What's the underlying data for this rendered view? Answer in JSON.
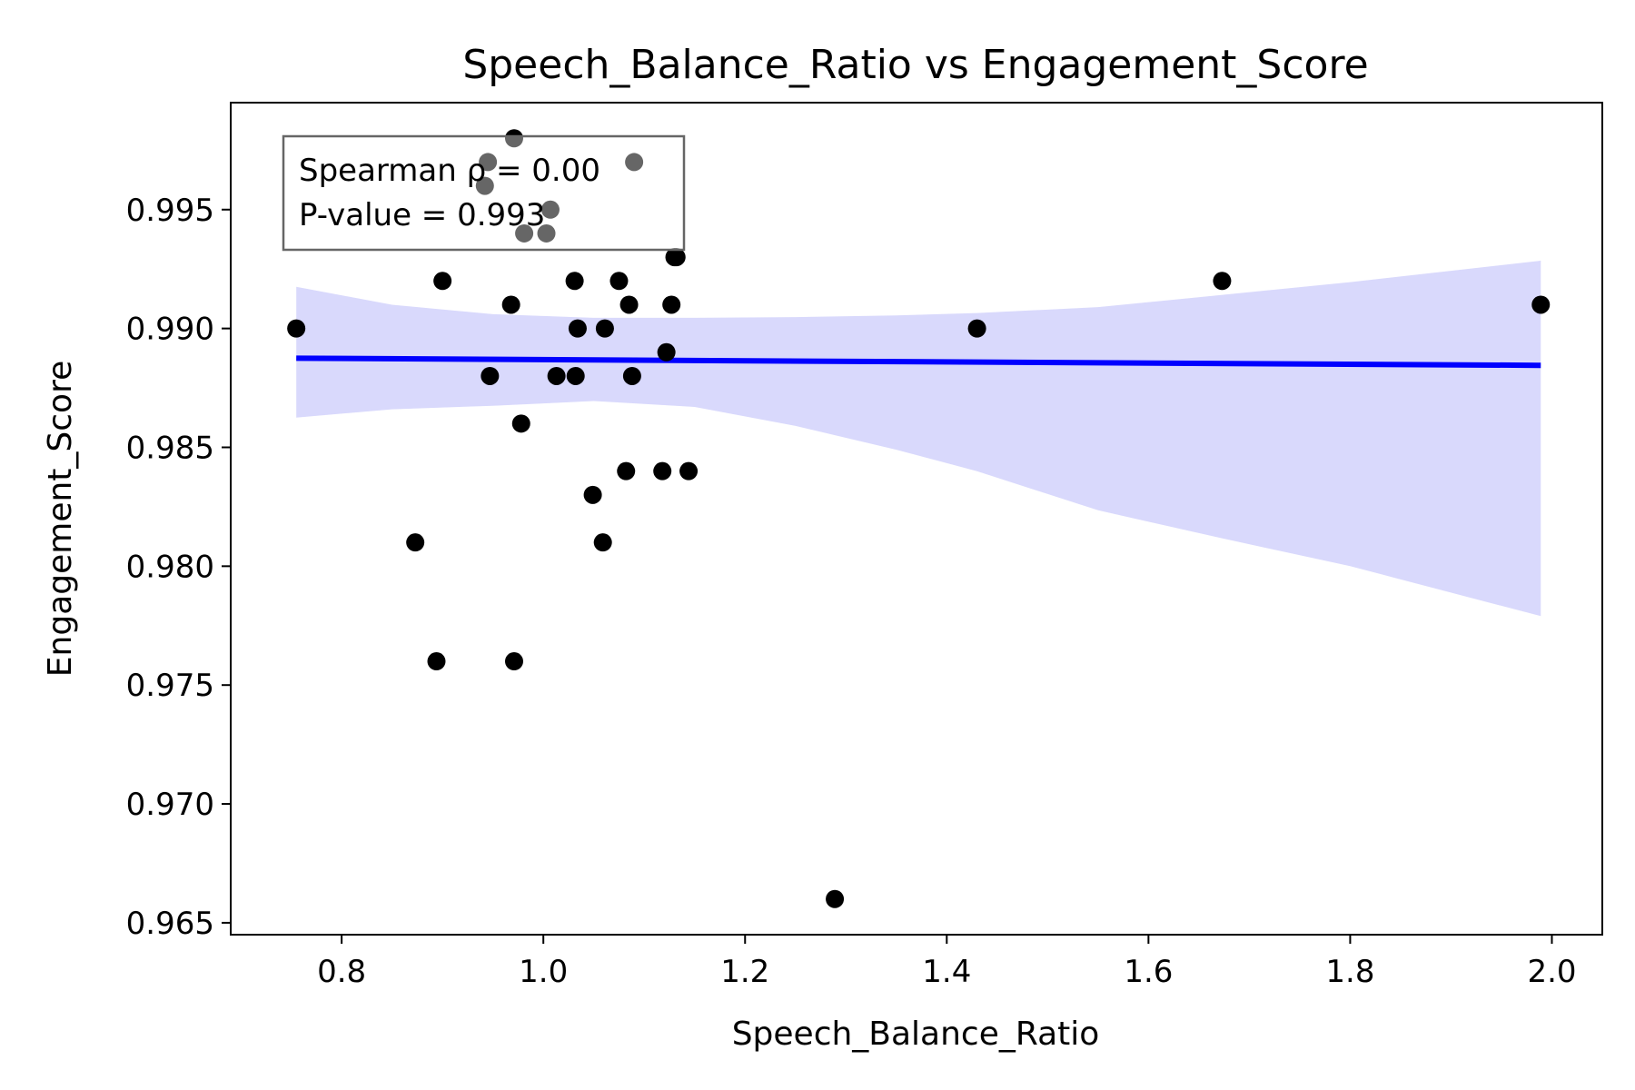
{
  "chart_data": {
    "type": "scatter",
    "title": "Speech_Balance_Ratio vs Engagement_Score",
    "xlabel": "Speech_Balance_Ratio",
    "ylabel": "Engagement_Score",
    "xlim": [
      0.69,
      2.05
    ],
    "ylim": [
      0.9645,
      0.9995
    ],
    "xticks": [
      0.8,
      1.0,
      1.2,
      1.4,
      1.6,
      1.8,
      2.0
    ],
    "xtick_labels": [
      "0.8",
      "1.0",
      "1.2",
      "1.4",
      "1.6",
      "1.8",
      "2.0"
    ],
    "yticks": [
      0.965,
      0.97,
      0.975,
      0.98,
      0.985,
      0.99,
      0.995
    ],
    "ytick_labels": [
      "0.965",
      "0.970",
      "0.975",
      "0.980",
      "0.985",
      "0.990",
      "0.995"
    ],
    "grid": false,
    "points": [
      {
        "x": 0.755,
        "y": 0.99
      },
      {
        "x": 0.873,
        "y": 0.981
      },
      {
        "x": 0.894,
        "y": 0.976
      },
      {
        "x": 0.9,
        "y": 0.992
      },
      {
        "x": 0.942,
        "y": 0.996
      },
      {
        "x": 0.945,
        "y": 0.997
      },
      {
        "x": 0.947,
        "y": 0.988
      },
      {
        "x": 0.968,
        "y": 0.991
      },
      {
        "x": 0.971,
        "y": 0.998
      },
      {
        "x": 0.971,
        "y": 0.976
      },
      {
        "x": 0.978,
        "y": 0.986
      },
      {
        "x": 0.981,
        "y": 0.994
      },
      {
        "x": 1.003,
        "y": 0.994
      },
      {
        "x": 1.007,
        "y": 0.995
      },
      {
        "x": 1.013,
        "y": 0.988
      },
      {
        "x": 1.031,
        "y": 0.992
      },
      {
        "x": 1.032,
        "y": 0.988
      },
      {
        "x": 1.034,
        "y": 0.99
      },
      {
        "x": 1.049,
        "y": 0.983
      },
      {
        "x": 1.059,
        "y": 0.981
      },
      {
        "x": 1.061,
        "y": 0.99
      },
      {
        "x": 1.075,
        "y": 0.992
      },
      {
        "x": 1.082,
        "y": 0.984
      },
      {
        "x": 1.085,
        "y": 0.991
      },
      {
        "x": 1.088,
        "y": 0.988
      },
      {
        "x": 1.09,
        "y": 0.997
      },
      {
        "x": 1.118,
        "y": 0.984
      },
      {
        "x": 1.122,
        "y": 0.989
      },
      {
        "x": 1.127,
        "y": 0.991
      },
      {
        "x": 1.13,
        "y": 0.993
      },
      {
        "x": 1.132,
        "y": 0.993
      },
      {
        "x": 1.144,
        "y": 0.984
      },
      {
        "x": 1.289,
        "y": 0.966
      },
      {
        "x": 1.43,
        "y": 0.99
      },
      {
        "x": 1.673,
        "y": 0.992
      },
      {
        "x": 1.989,
        "y": 0.991
      }
    ],
    "regression_line": {
      "x": [
        0.755,
        1.989
      ],
      "y": [
        0.98875,
        0.98845
      ]
    },
    "confidence_band": {
      "x": [
        0.755,
        0.85,
        0.95,
        1.05,
        1.15,
        1.25,
        1.35,
        1.43,
        1.55,
        1.67,
        1.8,
        1.989
      ],
      "upper": [
        0.99175,
        0.991,
        0.9906,
        0.99045,
        0.99045,
        0.99048,
        0.99055,
        0.99065,
        0.9909,
        0.9914,
        0.99195,
        0.99285
      ],
      "lower": [
        0.98625,
        0.9866,
        0.98675,
        0.98695,
        0.9867,
        0.9859,
        0.9849,
        0.984,
        0.98235,
        0.9812,
        0.98,
        0.9779
      ]
    },
    "annotation": {
      "line1": "Spearman ρ = 0.00",
      "line2": "P-value = 0.993"
    },
    "colors": {
      "points": "#000000",
      "line": "#0000ff",
      "band": "#d9d9fc",
      "annotation_border": "#666666"
    }
  }
}
